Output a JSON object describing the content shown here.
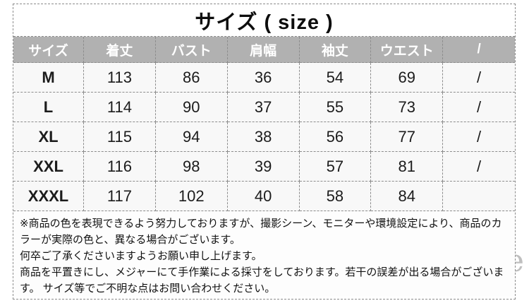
{
  "title": "サイズ ( size )",
  "table": {
    "headers": [
      "サイズ",
      "着丈",
      "バスト",
      "肩幅",
      "袖丈",
      "ウエスト",
      "/"
    ],
    "rows": [
      {
        "label": "M",
        "values": [
          "113",
          "86",
          "36",
          "54",
          "69",
          "/"
        ]
      },
      {
        "label": "L",
        "values": [
          "114",
          "90",
          "37",
          "55",
          "73",
          "/"
        ]
      },
      {
        "label": "XL",
        "values": [
          "115",
          "94",
          "38",
          "56",
          "77",
          "/"
        ]
      },
      {
        "label": "XXL",
        "values": [
          "116",
          "98",
          "39",
          "57",
          "81",
          "/"
        ]
      },
      {
        "label": "XXXL",
        "values": [
          "117",
          "102",
          "40",
          "58",
          "84",
          ""
        ]
      }
    ]
  },
  "notes": {
    "line1": "※商品の色を表現できるよう努力しておりますが、撮影シーン、モニターや環境設定により、商品のカラーが実際の色と、異なる場合がございます。",
    "line2": "何卒ご了承くださいますようお願い申し上げます。",
    "line3": "商品を平置きにし、メジャーにて手作業による採寸をしております。若干の誤差が出る場合がございます。 サイズ等でご不明な点はお問い合わせください。"
  },
  "watermark": "sumone",
  "colors": {
    "header_bg": "#b1b1b1",
    "header_text": "#ffffff",
    "cell_bg": "#f8f8f8",
    "border": "#8c8c8c",
    "body_text": "#111111",
    "watermark": "#9e9e9e"
  }
}
